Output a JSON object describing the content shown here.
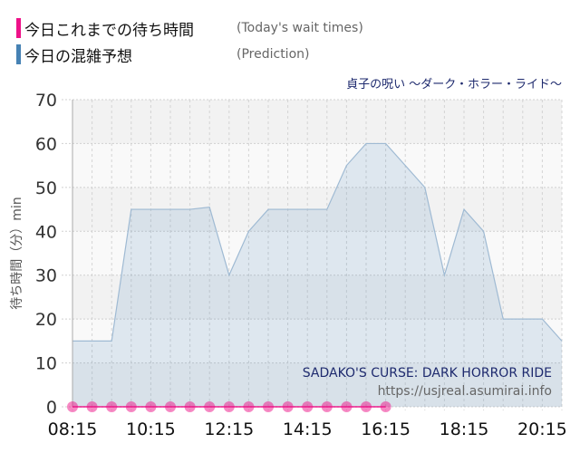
{
  "legend": [
    {
      "label_jp": "今日これまでの待ち時間",
      "label_en": "(Today's wait times)",
      "color": "#ee1188"
    },
    {
      "label_jp": "今日の混雑予想",
      "label_en": "(Prediction)",
      "color": "#4682b4"
    }
  ],
  "ride_name_jp": "貞子の呪い ～ダーク・ホラー・ライド～",
  "ride_name_en": "SADAKO'S CURSE: DARK HORROR RIDE",
  "source_url": "https://usjreal.asumirai.info",
  "chart_data": {
    "type": "area",
    "ylabel": "待ち時間（分）min",
    "ylim": [
      0,
      70
    ],
    "yticks": [
      0,
      10,
      20,
      30,
      40,
      50,
      60,
      70
    ],
    "xlim": [
      "08:15",
      "20:45"
    ],
    "xticks": [
      "08:15",
      "10:15",
      "12:15",
      "14:15",
      "16:15",
      "18:15",
      "20:15"
    ],
    "grid": true,
    "series": [
      {
        "name": "今日の混雑予想",
        "type": "area",
        "color": "#4682b4",
        "x": [
          "08:15",
          "08:45",
          "09:15",
          "09:45",
          "10:15",
          "10:45",
          "11:15",
          "11:45",
          "12:15",
          "12:45",
          "13:15",
          "13:45",
          "14:15",
          "14:45",
          "15:15",
          "15:45",
          "16:15",
          "16:45",
          "17:15",
          "17:45",
          "18:15",
          "18:45",
          "19:15",
          "19:45",
          "20:15",
          "20:45"
        ],
        "values": [
          15,
          15,
          15,
          45,
          45,
          45,
          45,
          45.5,
          30,
          40,
          45,
          45,
          45,
          45,
          55,
          60,
          60,
          55,
          50,
          30,
          45,
          40,
          20,
          20,
          20,
          15
        ]
      },
      {
        "name": "今日これまでの待ち時間",
        "type": "line",
        "color": "#ee1188",
        "x": [
          "08:15",
          "08:45",
          "09:15",
          "09:45",
          "10:15",
          "10:45",
          "11:15",
          "11:45",
          "12:15",
          "12:45",
          "13:15",
          "13:45",
          "14:15",
          "14:45",
          "15:15",
          "15:45",
          "16:15"
        ],
        "values": [
          0,
          0,
          0,
          0,
          0,
          0,
          0,
          0,
          0,
          0,
          0,
          0,
          0,
          0,
          0,
          0,
          0
        ]
      }
    ]
  }
}
